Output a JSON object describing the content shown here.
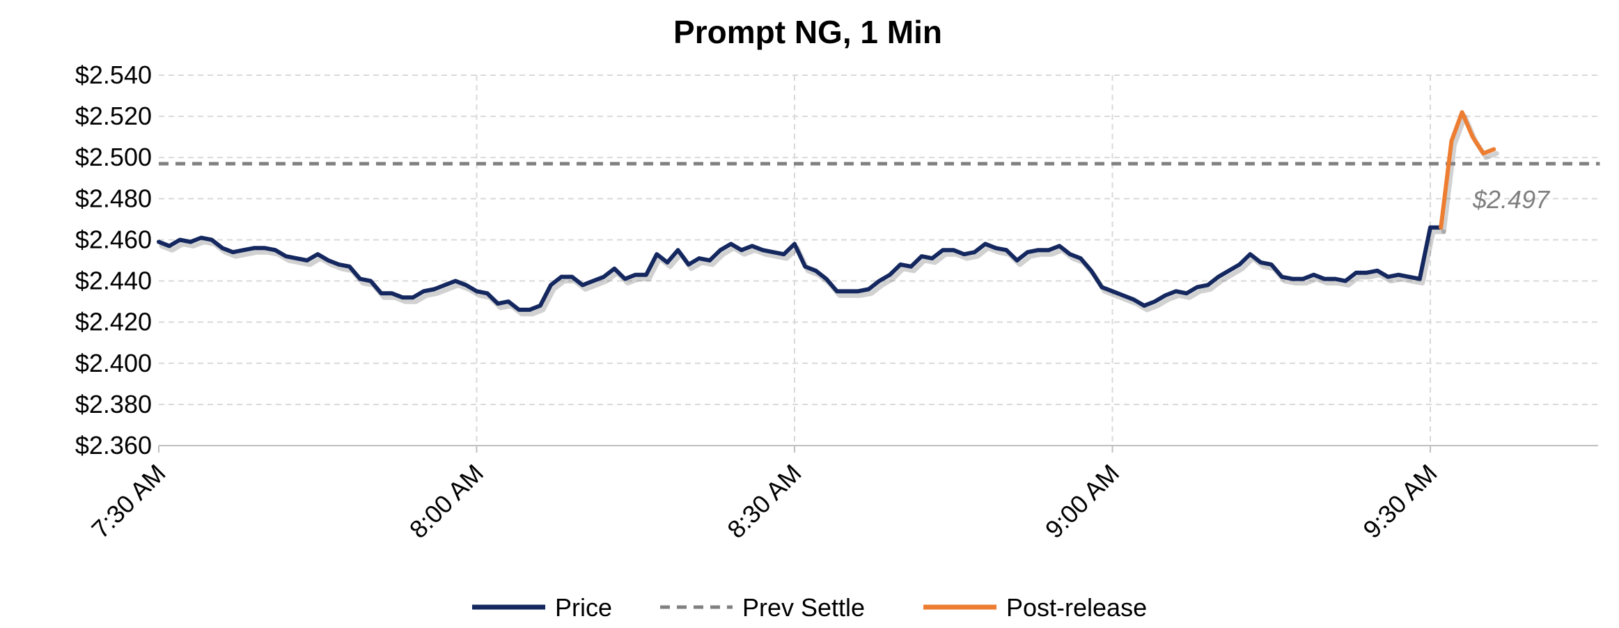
{
  "chart_data": {
    "type": "line",
    "title": "Prompt NG, 1 Min",
    "xlabel": "",
    "ylabel": "",
    "ylim": [
      2.36,
      2.54
    ],
    "y_ticks": [
      "$2.360",
      "$2.380",
      "$2.400",
      "$2.420",
      "$2.440",
      "$2.460",
      "$2.480",
      "$2.500",
      "$2.520",
      "$2.540"
    ],
    "x_ticks": [
      "7:30 AM",
      "8:00 AM",
      "8:30 AM",
      "9:00 AM",
      "9:30 AM"
    ],
    "x_tick_minutes": [
      0,
      30,
      60,
      90,
      120
    ],
    "x_range_minutes": [
      0,
      136
    ],
    "grid": true,
    "legend_position": "bottom",
    "colors": {
      "price": "#14285f",
      "prev_settle": "#808080",
      "post_release": "#ed7d31"
    },
    "prev_settle_label": "$2.497",
    "series": [
      {
        "name": "Price",
        "style": "solid",
        "x": [
          0,
          1,
          2,
          3,
          4,
          5,
          6,
          7,
          8,
          9,
          10,
          11,
          12,
          13,
          14,
          15,
          16,
          17,
          18,
          19,
          20,
          21,
          22,
          23,
          24,
          25,
          26,
          27,
          28,
          29,
          30,
          31,
          32,
          33,
          34,
          35,
          36,
          37,
          38,
          39,
          40,
          41,
          42,
          43,
          44,
          45,
          46,
          47,
          48,
          49,
          50,
          51,
          52,
          53,
          54,
          55,
          56,
          57,
          58,
          59,
          60,
          61,
          62,
          63,
          64,
          65,
          66,
          67,
          68,
          69,
          70,
          71,
          72,
          73,
          74,
          75,
          76,
          77,
          78,
          79,
          80,
          81,
          82,
          83,
          84,
          85,
          86,
          87,
          88,
          89,
          90,
          91,
          92,
          93,
          94,
          95,
          96,
          97,
          98,
          99,
          100,
          101,
          102,
          103,
          104,
          105,
          106,
          107,
          108,
          109,
          110,
          111,
          112,
          113,
          114,
          115,
          116,
          117,
          118,
          119,
          120,
          121
        ],
        "values": [
          2.459,
          2.457,
          2.46,
          2.459,
          2.461,
          2.46,
          2.456,
          2.454,
          2.455,
          2.456,
          2.456,
          2.455,
          2.452,
          2.451,
          2.45,
          2.453,
          2.45,
          2.448,
          2.447,
          2.441,
          2.44,
          2.434,
          2.434,
          2.432,
          2.432,
          2.435,
          2.436,
          2.438,
          2.44,
          2.438,
          2.435,
          2.434,
          2.429,
          2.43,
          2.426,
          2.426,
          2.428,
          2.438,
          2.442,
          2.442,
          2.438,
          2.44,
          2.442,
          2.446,
          2.441,
          2.443,
          2.443,
          2.453,
          2.449,
          2.455,
          2.448,
          2.451,
          2.45,
          2.455,
          2.458,
          2.455,
          2.457,
          2.455,
          2.454,
          2.453,
          2.458,
          2.447,
          2.445,
          2.441,
          2.435,
          2.435,
          2.435,
          2.436,
          2.44,
          2.443,
          2.448,
          2.447,
          2.452,
          2.451,
          2.455,
          2.455,
          2.453,
          2.454,
          2.458,
          2.456,
          2.455,
          2.45,
          2.454,
          2.455,
          2.455,
          2.457,
          2.453,
          2.451,
          2.445,
          2.437,
          2.435,
          2.433,
          2.431,
          2.428,
          2.43,
          2.433,
          2.435,
          2.434,
          2.437,
          2.438,
          2.442,
          2.445,
          2.448,
          2.453,
          2.449,
          2.448,
          2.442,
          2.441,
          2.441,
          2.443,
          2.441,
          2.441,
          2.44,
          2.444,
          2.444,
          2.445,
          2.442,
          2.443,
          2.442,
          2.441,
          2.466,
          2.466
        ]
      },
      {
        "name": "Prev Settle",
        "style": "dashed",
        "x": [
          0,
          136
        ],
        "values": [
          2.497,
          2.497
        ]
      },
      {
        "name": "Post-release",
        "style": "solid",
        "x": [
          121,
          122,
          123,
          124,
          125,
          126
        ],
        "values": [
          2.466,
          2.508,
          2.522,
          2.51,
          2.502,
          2.504
        ]
      }
    ]
  }
}
